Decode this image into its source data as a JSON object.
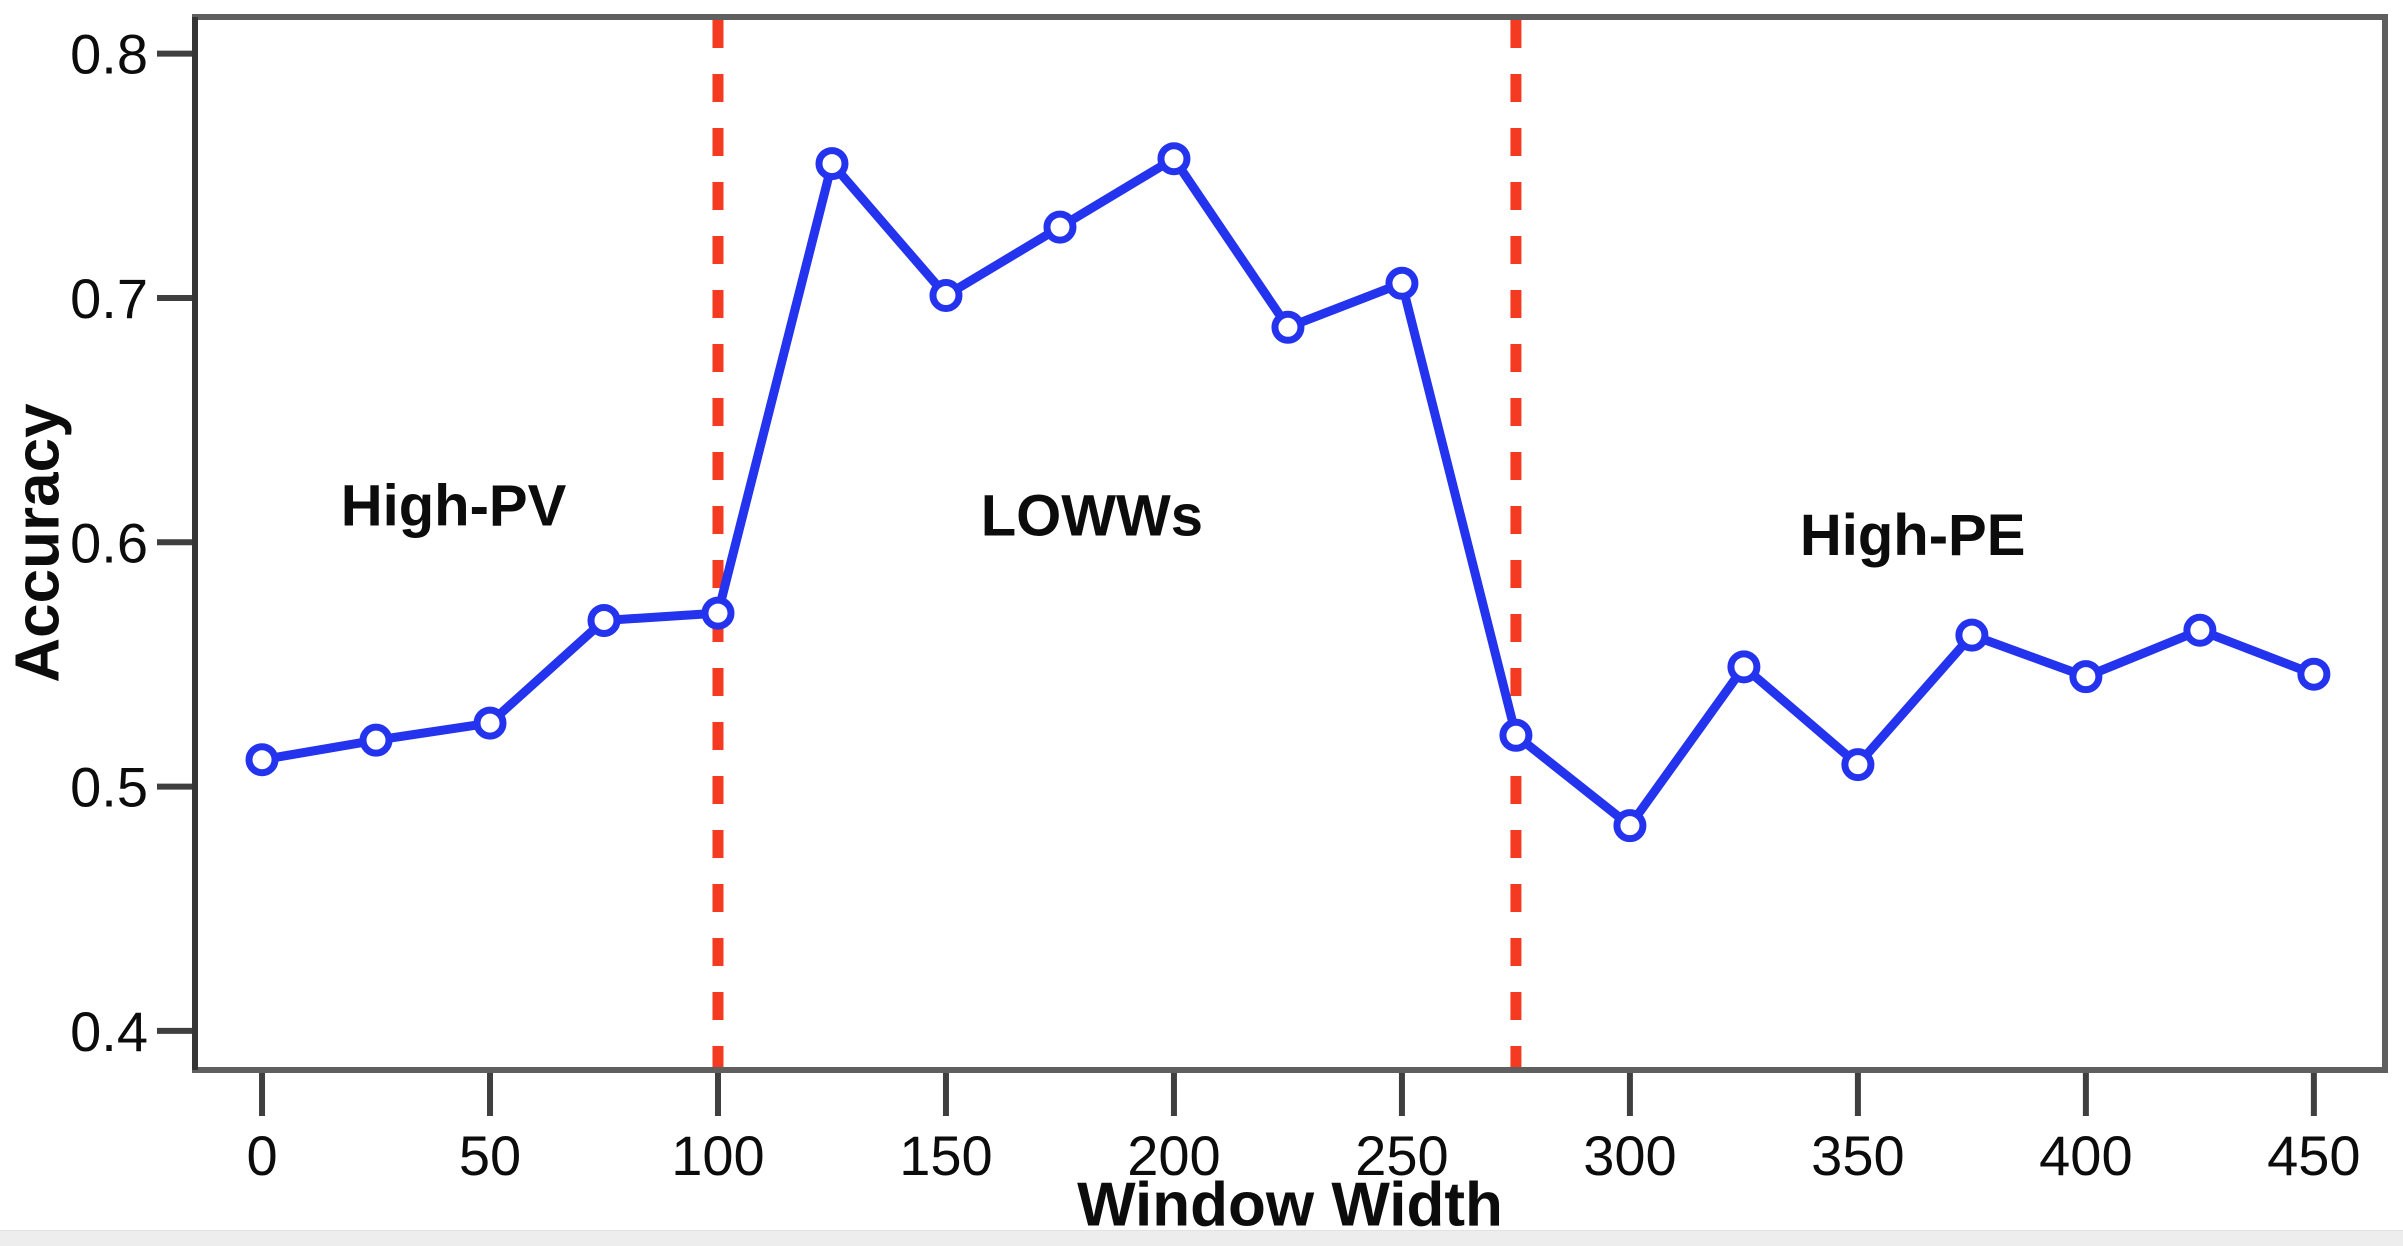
{
  "figure": {
    "background": "#ffffff",
    "bottom_band_color": "#ededed",
    "frame_color": "#5f5f5f",
    "frame_left_color": "#353535",
    "tick_color": "#3f3f3f",
    "text_color": "#0c0c0c"
  },
  "chart_data": {
    "type": "line",
    "title": "",
    "xlabel": "Window Width",
    "ylabel": "Accuracy",
    "x": [
      0,
      25,
      50,
      75,
      100,
      125,
      150,
      175,
      200,
      225,
      250,
      275,
      300,
      325,
      350,
      375,
      400,
      425,
      450
    ],
    "series": [
      {
        "name": "Accuracy",
        "color": "#2333ee",
        "marker": "open-circle",
        "marker_fill": "#ffffff",
        "values": [
          0.511,
          0.519,
          0.526,
          0.568,
          0.571,
          0.755,
          0.701,
          0.729,
          0.757,
          0.688,
          0.706,
          0.521,
          0.484,
          0.549,
          0.509,
          0.562,
          0.545,
          0.564,
          0.546
        ]
      }
    ],
    "x_ticks": [
      0,
      50,
      100,
      150,
      200,
      250,
      300,
      350,
      400,
      450
    ],
    "y_ticks": [
      0.4,
      0.5,
      0.6,
      0.7,
      0.8
    ],
    "y_tick_decimals": 1,
    "xlim": [
      -14.7,
      465.6
    ],
    "ylim": [
      0.384,
      0.815
    ],
    "grid": false,
    "legend": null,
    "vlines": [
      {
        "x": 100,
        "style": "dashed",
        "color": "#f43a20"
      },
      {
        "x": 275,
        "style": "dashed",
        "color": "#f43a20"
      }
    ],
    "annotations": [
      {
        "label": "High-PV",
        "x": 42,
        "y": 0.615
      },
      {
        "label": "LOWWs",
        "x": 182,
        "y": 0.611
      },
      {
        "label": "High-PE",
        "x": 362,
        "y": 0.603
      }
    ]
  }
}
